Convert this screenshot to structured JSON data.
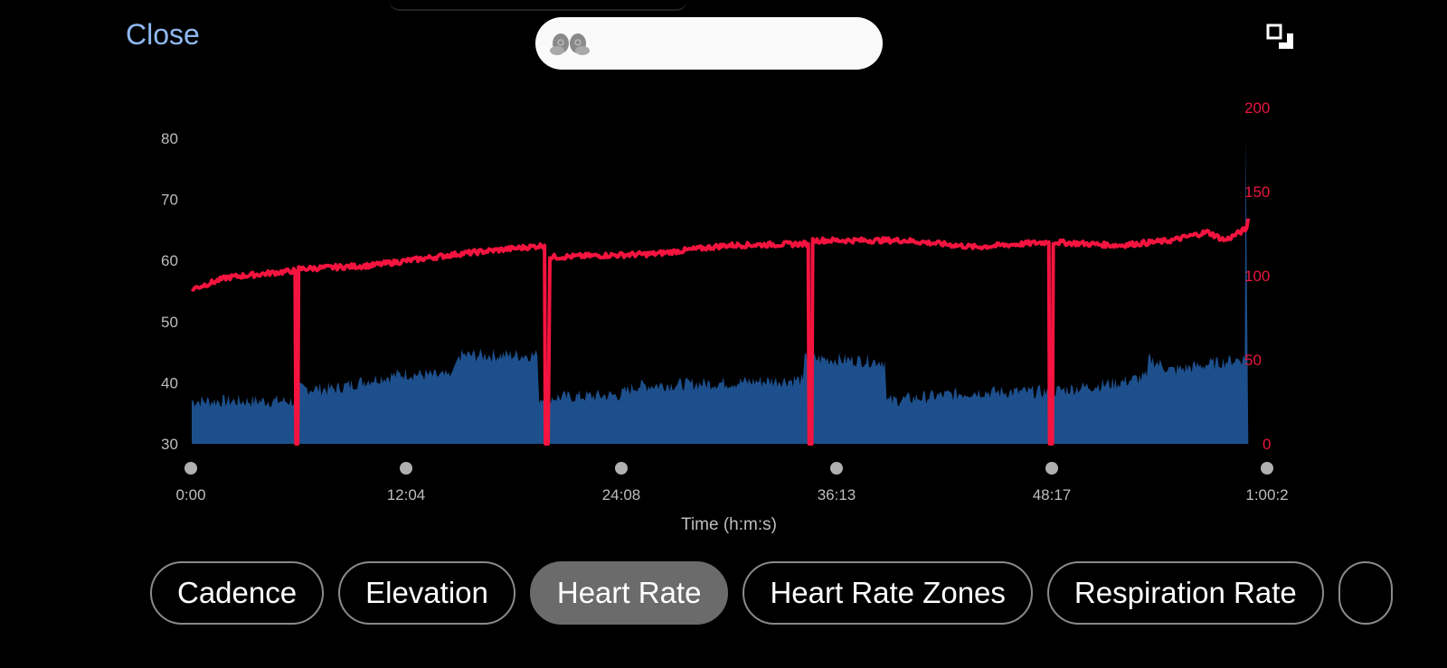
{
  "header": {
    "close_label": "Close",
    "search_value": "",
    "icons": {
      "search_pill": "earbuds-icon",
      "expand": "expand-icon"
    }
  },
  "chart_data": {
    "type": "line",
    "xlabel": "Time (h:m:s)",
    "x_ticks": [
      "0:00",
      "12:04",
      "24:08",
      "36:13",
      "48:17",
      "1:00:2"
    ],
    "x_range_min": [
      0,
      60.35
    ],
    "left_axis": {
      "ticks": [
        "30",
        "40",
        "50",
        "60",
        "70",
        "80"
      ],
      "ylim": [
        30,
        80
      ]
    },
    "right_axis": {
      "ticks": [
        "0",
        "50",
        "100",
        "150",
        "200"
      ],
      "ylim": [
        0,
        200
      ],
      "color": "#e8163f"
    },
    "series": [
      {
        "name": "Cadence",
        "kind": "area",
        "axis": "left",
        "color": "#1d4f8c",
        "points_min": [
          [
            0,
            37
          ],
          [
            5.8,
            37
          ],
          [
            5.9,
            39
          ],
          [
            8,
            39
          ],
          [
            10,
            40.5
          ],
          [
            12,
            41.5
          ],
          [
            14.5,
            41
          ],
          [
            15,
            44.5
          ],
          [
            19.4,
            44.5
          ],
          [
            19.5,
            37.5
          ],
          [
            24,
            38
          ],
          [
            25,
            39.5
          ],
          [
            30,
            40
          ],
          [
            34.3,
            40.5
          ],
          [
            34.4,
            44
          ],
          [
            38.9,
            43.5
          ],
          [
            39,
            37
          ],
          [
            44,
            38.5
          ],
          [
            48,
            38.5
          ],
          [
            52,
            40
          ],
          [
            53.6,
            41
          ],
          [
            53.7,
            44
          ],
          [
            55,
            42
          ],
          [
            57,
            43
          ],
          [
            59.1,
            44
          ],
          [
            59.15,
            80
          ],
          [
            59.3,
            30
          ]
        ]
      },
      {
        "name": "Heart Rate",
        "kind": "line",
        "axis": "right",
        "color": "#f5143f",
        "points_min": [
          [
            0,
            92
          ],
          [
            2,
            99
          ],
          [
            5.8,
            103
          ],
          [
            5.85,
            0
          ],
          [
            5.95,
            0
          ],
          [
            6,
            104
          ],
          [
            10,
            106
          ],
          [
            15,
            113
          ],
          [
            19.8,
            118
          ],
          [
            19.85,
            0
          ],
          [
            20,
            0
          ],
          [
            20.1,
            111
          ],
          [
            23,
            112
          ],
          [
            26,
            113
          ],
          [
            30,
            118
          ],
          [
            34.6,
            119
          ],
          [
            34.65,
            0
          ],
          [
            34.8,
            0
          ],
          [
            34.85,
            121
          ],
          [
            40,
            121
          ],
          [
            44,
            117
          ],
          [
            48.1,
            120
          ],
          [
            48.15,
            0
          ],
          [
            48.3,
            0
          ],
          [
            48.35,
            120
          ],
          [
            52,
            118
          ],
          [
            55,
            121
          ],
          [
            57,
            126
          ],
          [
            58,
            121
          ],
          [
            59.2,
            128
          ],
          [
            59.3,
            134
          ]
        ]
      }
    ]
  },
  "tabs": [
    {
      "label": "Cadence"
    },
    {
      "label": "Elevation"
    },
    {
      "label": "Heart Rate",
      "selected": true
    },
    {
      "label": "Heart Rate Zones"
    },
    {
      "label": "Respiration Rate"
    },
    {
      "label": ""
    }
  ]
}
